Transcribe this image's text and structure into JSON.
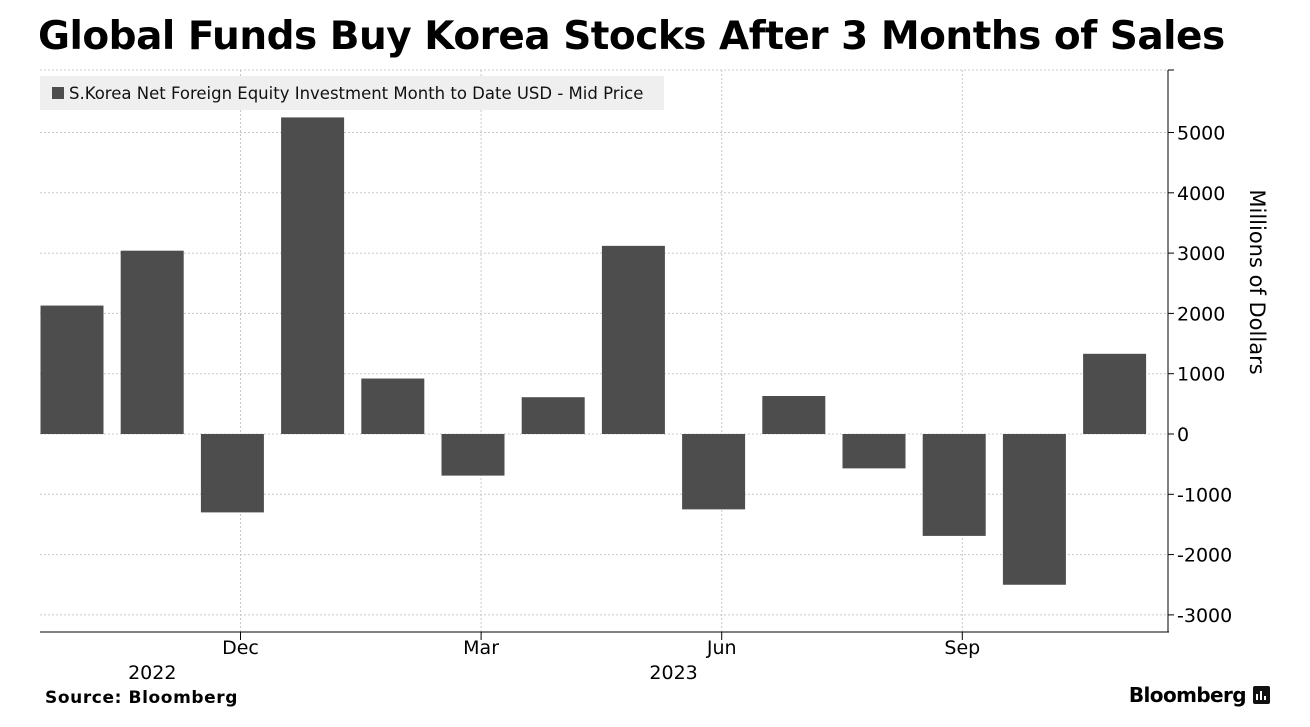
{
  "chart_data": {
    "type": "bar",
    "title": "Global Funds Buy Korea Stocks After 3 Months of Sales",
    "legend": [
      "S.Korea Net Foreign Equity Investment Month to Date USD - Mid Price"
    ],
    "legend_position": "top-left",
    "ylabel": "Millions of Dollars",
    "ylim": [
      -3000,
      5800
    ],
    "yticks": [
      -3000,
      -2000,
      -1000,
      0,
      1000,
      2000,
      3000,
      4000,
      5000
    ],
    "grid": true,
    "categories": [
      "2022-10",
      "2022-11",
      "2022-12",
      "2023-01",
      "2023-02",
      "2023-03",
      "2023-04",
      "2023-05",
      "2023-06",
      "2023-07",
      "2023-08",
      "2023-09",
      "2023-10",
      "2023-11"
    ],
    "series": [
      {
        "name": "S.Korea Net Foreign Equity Investment Month to Date USD - Mid Price",
        "values": [
          2130,
          3040,
          -1300,
          5250,
          920,
          -690,
          610,
          3120,
          -1250,
          630,
          -570,
          -1690,
          -2500,
          1330
        ]
      }
    ],
    "x_tick_labels": [
      {
        "label": "Dec",
        "index": 2.5
      },
      {
        "label": "Mar",
        "index": 5.5
      },
      {
        "label": "Jun",
        "index": 8.5
      },
      {
        "label": "Sep",
        "index": 11.5
      }
    ],
    "x_year_labels": [
      {
        "label": "2022",
        "index": 1.4
      },
      {
        "label": "2023",
        "index": 7.9
      }
    ]
  },
  "footer": {
    "source": "Source: Bloomberg",
    "brand": "Bloomberg"
  },
  "colors": {
    "bar": "#4d4d4d",
    "grid": "#c8c8c8",
    "legend_bg": "#efefef"
  }
}
